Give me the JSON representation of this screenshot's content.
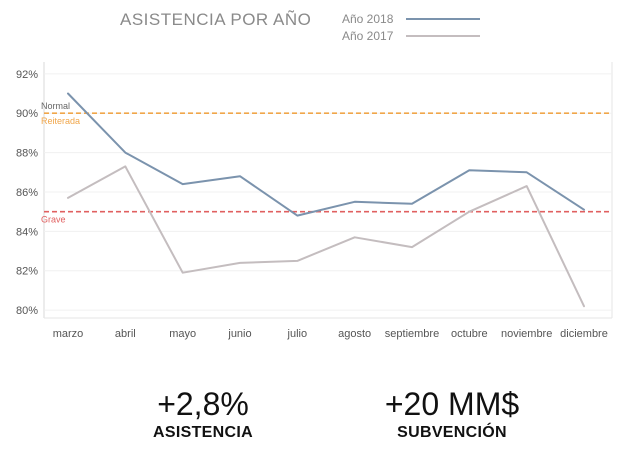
{
  "chart_data": {
    "type": "line",
    "title": "ASISTENCIA POR AÑO",
    "categories": [
      "marzo",
      "abril",
      "mayo",
      "junio",
      "julio",
      "agosto",
      "septiembre",
      "octubre",
      "noviembre",
      "diciembre"
    ],
    "series": [
      {
        "name": "Año 2018",
        "color": "#7b93ad",
        "values": [
          91.0,
          88.0,
          86.4,
          86.8,
          84.8,
          85.5,
          85.4,
          87.1,
          87.0,
          85.1
        ]
      },
      {
        "name": "Año 2017",
        "color": "#c4bdbf",
        "values": [
          85.7,
          87.3,
          81.9,
          82.4,
          82.5,
          83.7,
          83.2,
          85.0,
          86.3,
          80.2
        ]
      }
    ],
    "ylim": [
      79.6,
      92.6
    ],
    "yticks": [
      80,
      82,
      84,
      86,
      88,
      90,
      92
    ],
    "ytick_labels": [
      "80%",
      "82%",
      "84%",
      "86%",
      "88%",
      "90%",
      "92%"
    ],
    "reference_lines": [
      {
        "value": 90,
        "color": "#f0a64a",
        "labels": [
          "Normal",
          "Reiterada"
        ],
        "label_colors": [
          "#666666",
          "#f0a64a"
        ]
      },
      {
        "value": 85,
        "color": "#e06060",
        "labels": [
          "Grave"
        ],
        "label_colors": [
          "#e06060"
        ]
      }
    ],
    "grid": true,
    "legend_position": "top"
  },
  "kpis": [
    {
      "value": "+2,8%",
      "label": "ASISTENCIA"
    },
    {
      "value": "+20 MM$",
      "label": "SUBVENCIÓN"
    }
  ]
}
